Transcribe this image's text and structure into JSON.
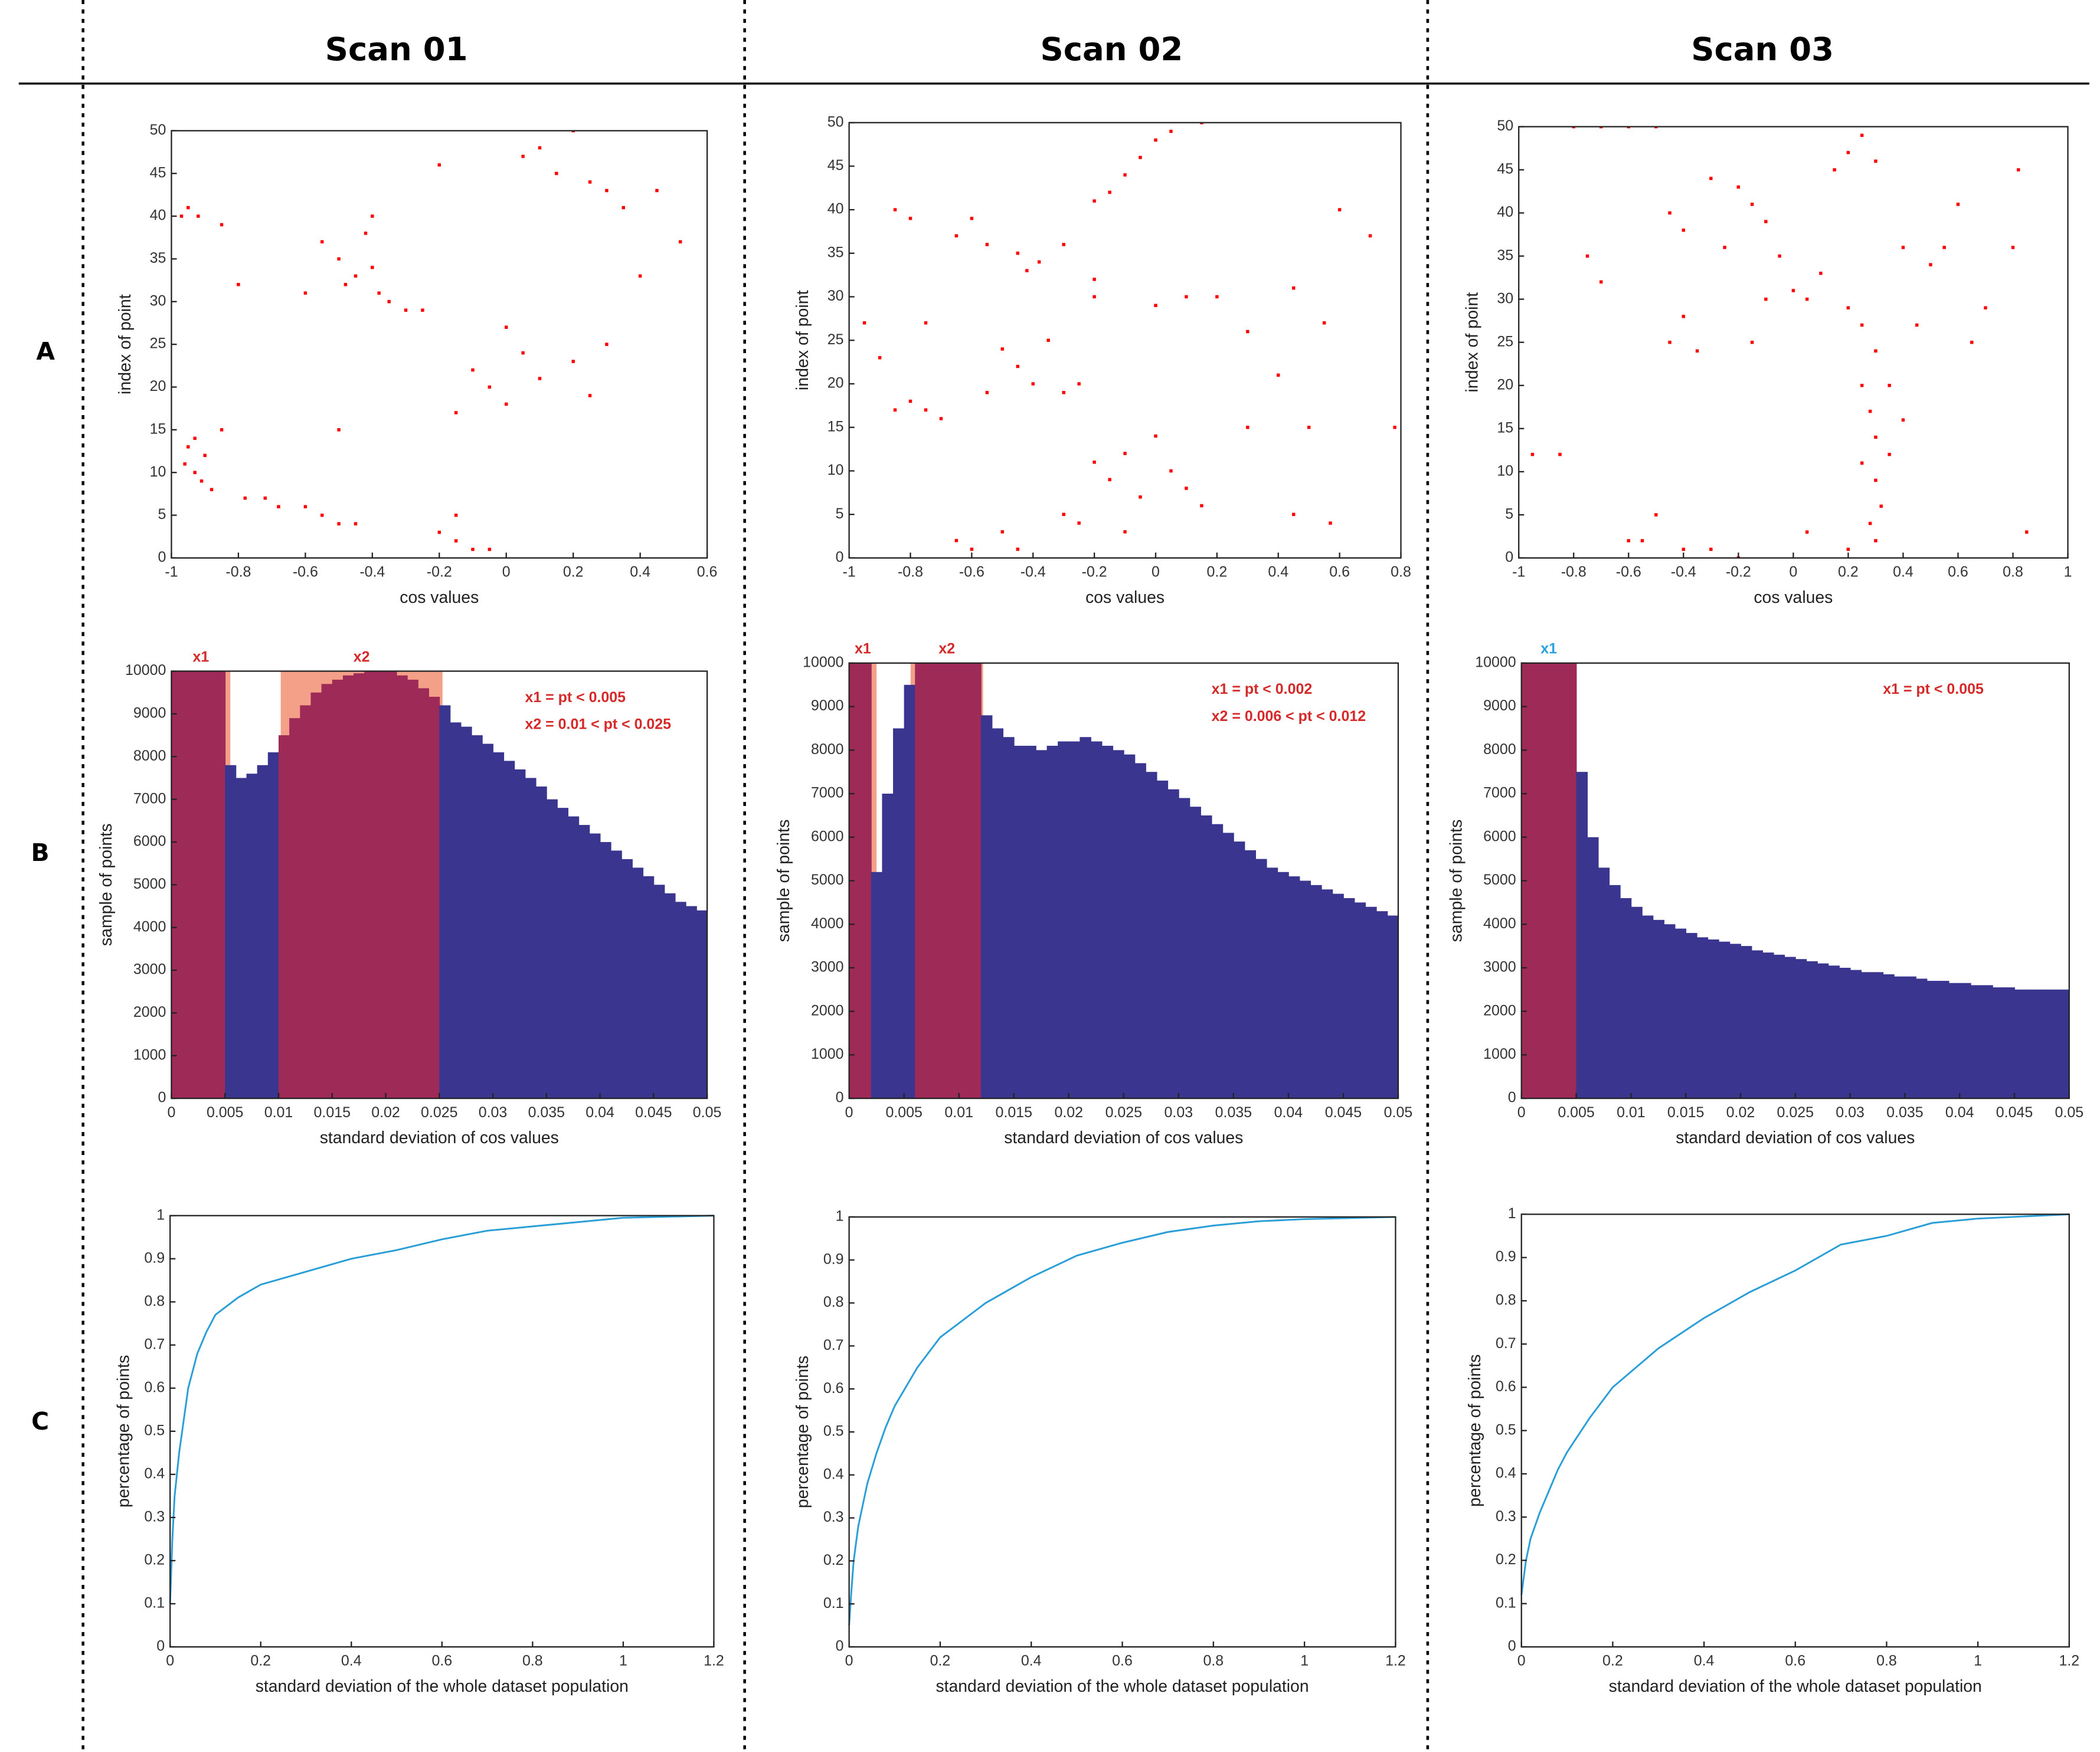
{
  "columns": [
    "Scan 01",
    "Scan 02",
    "Scan 03"
  ],
  "rows": [
    "A",
    "B",
    "C"
  ],
  "chart_data": [
    {
      "type": "scatter",
      "xlabel": "cos values",
      "ylabel": "index of point",
      "color": "#ff0000",
      "xlim": [
        -1,
        0.6
      ],
      "xticks": [
        -1,
        -0.8,
        -0.6,
        -0.4,
        -0.2,
        0,
        0.2,
        0.4,
        0.6
      ],
      "ylim": [
        0,
        50
      ],
      "yticks": [
        0,
        5,
        10,
        15,
        20,
        25,
        30,
        35,
        40,
        45,
        50
      ],
      "x": [
        -0.95,
        -0.92,
        -0.97,
        -0.85,
        -0.93,
        -0.95,
        -0.9,
        -0.96,
        -0.93,
        -0.91,
        -0.88,
        -0.85,
        -0.78,
        -0.72,
        -0.68,
        -0.6,
        -0.55,
        -0.5,
        -0.45,
        -0.55,
        -0.5,
        -0.45,
        -0.4,
        -0.38,
        -0.42,
        -0.35,
        -0.3,
        -0.48,
        -0.4,
        -0.6,
        -0.5,
        -0.2,
        -0.15,
        -0.1,
        -0.05,
        -0.15,
        -0.1,
        -0.05,
        0,
        0.05,
        0.1,
        0.2,
        0.25,
        0.3,
        -0.15,
        0,
        0.05,
        0.1,
        0.15,
        0.2,
        0.25,
        0.3,
        0.35,
        0.45,
        0.52,
        0.4,
        -0.2,
        -0.25,
        -0.8
      ],
      "values": [
        41,
        40,
        40,
        39,
        14,
        13,
        12,
        11,
        10,
        9,
        8,
        15,
        7,
        7,
        6,
        6,
        5,
        4,
        4,
        37,
        35,
        33,
        34,
        31,
        38,
        30,
        29,
        32,
        40,
        31,
        15,
        3,
        2,
        1,
        1,
        5,
        22,
        20,
        18,
        24,
        21,
        23,
        19,
        25,
        17,
        27,
        47,
        48,
        45,
        50,
        44,
        43,
        41,
        43,
        37,
        33,
        46,
        29,
        32
      ]
    },
    {
      "type": "scatter",
      "xlabel": "cos values",
      "ylabel": "index of point",
      "color": "#ff0000",
      "xlim": [
        -1,
        0.8
      ],
      "xticks": [
        -1,
        -0.8,
        -0.6,
        -0.4,
        -0.2,
        0,
        0.2,
        0.4,
        0.6,
        0.8
      ],
      "ylim": [
        0,
        50
      ],
      "yticks": [
        0,
        5,
        10,
        15,
        20,
        25,
        30,
        35,
        40,
        45,
        50
      ],
      "x": [
        -0.85,
        -0.8,
        -0.6,
        -0.65,
        -0.55,
        -0.45,
        -0.42,
        -0.38,
        -0.3,
        -0.2,
        -0.75,
        -0.9,
        -0.8,
        -0.75,
        -0.7,
        -0.85,
        -0.5,
        -0.45,
        -0.4,
        -0.55,
        -0.35,
        -0.3,
        -0.25,
        -0.65,
        -0.6,
        -0.5,
        -0.45,
        -0.3,
        -0.25,
        -0.2,
        -0.15,
        -0.1,
        -0.05,
        0,
        0.05,
        0.1,
        0.15,
        -0.1,
        -0.15,
        -0.1,
        -0.05,
        0,
        0.05,
        0.15,
        -0.2,
        -0.2,
        0,
        0.1,
        0.2,
        0.3,
        0.45,
        0.4,
        0.5,
        0.55,
        0.7,
        0.6,
        0.78,
        0.57,
        0.45,
        0.3,
        -0.95
      ],
      "values": [
        40,
        39,
        39,
        37,
        36,
        35,
        33,
        34,
        36,
        32,
        27,
        23,
        18,
        17,
        16,
        17,
        24,
        22,
        20,
        19,
        25,
        19,
        20,
        2,
        1,
        3,
        1,
        5,
        4,
        11,
        9,
        12,
        7,
        14,
        10,
        8,
        6,
        3,
        42,
        44,
        46,
        48,
        49,
        50,
        41,
        30,
        29,
        30,
        30,
        26,
        31,
        21,
        15,
        27,
        37,
        40,
        15,
        4,
        5,
        15,
        27
      ]
    },
    {
      "type": "scatter",
      "xlabel": "cos values",
      "ylabel": "index of point",
      "color": "#ff0000",
      "xlim": [
        -1,
        1
      ],
      "xticks": [
        -1,
        -0.8,
        -0.6,
        -0.4,
        -0.2,
        0,
        0.2,
        0.4,
        0.6,
        0.8,
        1
      ],
      "ylim": [
        0,
        50
      ],
      "yticks": [
        0,
        5,
        10,
        15,
        20,
        25,
        30,
        35,
        40,
        45,
        50
      ],
      "x": [
        -0.8,
        -0.7,
        -0.6,
        -0.5,
        -0.95,
        -0.85,
        -0.75,
        -0.7,
        -0.6,
        -0.55,
        -0.5,
        -0.4,
        -0.3,
        -0.2,
        -0.45,
        -0.4,
        -0.35,
        -0.45,
        -0.4,
        -0.3,
        -0.2,
        -0.15,
        -0.1,
        -0.25,
        -0.05,
        0,
        0.05,
        0.1,
        -0.1,
        0.15,
        0.2,
        0.25,
        0.3,
        0.2,
        0.25,
        0.3,
        0.25,
        0.28,
        0.3,
        0.25,
        0.3,
        0.32,
        0.28,
        0.3,
        0.35,
        0.4,
        0.35,
        0.45,
        0.5,
        0.55,
        0.6,
        0.65,
        0.7,
        0.8,
        0.82,
        0.85,
        0.05,
        0.2,
        -0.15,
        0.4
      ],
      "values": [
        50,
        50,
        50,
        50,
        12,
        12,
        35,
        32,
        2,
        2,
        5,
        1,
        1,
        0,
        25,
        28,
        24,
        40,
        38,
        44,
        43,
        41,
        39,
        36,
        35,
        31,
        30,
        33,
        30,
        45,
        47,
        49,
        46,
        29,
        27,
        24,
        20,
        17,
        14,
        11,
        9,
        6,
        4,
        2,
        12,
        16,
        20,
        27,
        34,
        36,
        41,
        25,
        29,
        36,
        45,
        3,
        3,
        1,
        25,
        36
      ]
    },
    {
      "type": "histogram",
      "xlabel": "standard deviation of cos values",
      "ylabel": "sample of points",
      "color": "#3a358f",
      "highlight_color": "#9e2a58",
      "region_color": "#f4a088",
      "label_color": "#d42a2a",
      "xlim": [
        0,
        0.05
      ],
      "xticks": [
        0,
        0.005,
        0.01,
        0.015,
        0.02,
        0.025,
        0.03,
        0.035,
        0.04,
        0.045,
        0.05
      ],
      "ylim": [
        0,
        10000
      ],
      "yticks": [
        0,
        1000,
        2000,
        3000,
        4000,
        5000,
        6000,
        7000,
        8000,
        9000,
        10000
      ],
      "bins": [
        0,
        0.001,
        0.002,
        0.003,
        0.004,
        0.005,
        0.006,
        0.007,
        0.008,
        0.009,
        0.01,
        0.011,
        0.012,
        0.013,
        0.014,
        0.015,
        0.016,
        0.017,
        0.018,
        0.019,
        0.02,
        0.021,
        0.022,
        0.023,
        0.024,
        0.025,
        0.026,
        0.027,
        0.028,
        0.029,
        0.03,
        0.031,
        0.032,
        0.033,
        0.034,
        0.035,
        0.036,
        0.037,
        0.038,
        0.039,
        0.04,
        0.041,
        0.042,
        0.043,
        0.044,
        0.045,
        0.046,
        0.047,
        0.048,
        0.049,
        0.05
      ],
      "counts": [
        10000,
        10000,
        10000,
        10000,
        10000,
        7800,
        7500,
        7600,
        7800,
        8100,
        8500,
        8900,
        9200,
        9500,
        9700,
        9800,
        9900,
        9950,
        10000,
        10000,
        10000,
        9900,
        9800,
        9600,
        9400,
        9200,
        8800,
        8700,
        8500,
        8300,
        8100,
        7900,
        7700,
        7500,
        7300,
        7000,
        6800,
        6600,
        6400,
        6200,
        6000,
        5800,
        5600,
        5400,
        5200,
        5000,
        4800,
        4600,
        4500,
        4400
      ],
      "highlights": [
        {
          "label": "x1",
          "range": [
            0,
            0.0055
          ]
        },
        {
          "label": "x2",
          "range": [
            0.0102,
            0.0253
          ]
        }
      ],
      "annotations": [
        "x1 = pt < 0.005",
        "x2 = 0.01 < pt < 0.025"
      ]
    },
    {
      "type": "histogram",
      "xlabel": "standard deviation of cos values",
      "ylabel": "sample of points",
      "color": "#3a358f",
      "highlight_color": "#9e2a58",
      "region_color": "#f4a088",
      "label_color": "#d42a2a",
      "xlim": [
        0,
        0.05
      ],
      "xticks": [
        0,
        0.005,
        0.01,
        0.015,
        0.02,
        0.025,
        0.03,
        0.035,
        0.04,
        0.045,
        0.05
      ],
      "ylim": [
        0,
        10000
      ],
      "yticks": [
        0,
        1000,
        2000,
        3000,
        4000,
        5000,
        6000,
        7000,
        8000,
        9000,
        10000
      ],
      "bins": [
        0,
        0.001,
        0.002,
        0.003,
        0.004,
        0.005,
        0.006,
        0.007,
        0.008,
        0.009,
        0.01,
        0.011,
        0.012,
        0.013,
        0.014,
        0.015,
        0.016,
        0.017,
        0.018,
        0.019,
        0.02,
        0.021,
        0.022,
        0.023,
        0.024,
        0.025,
        0.026,
        0.027,
        0.028,
        0.029,
        0.03,
        0.031,
        0.032,
        0.033,
        0.034,
        0.035,
        0.036,
        0.037,
        0.038,
        0.039,
        0.04,
        0.041,
        0.042,
        0.043,
        0.044,
        0.045,
        0.046,
        0.047,
        0.048,
        0.049,
        0.05
      ],
      "counts": [
        10000,
        10000,
        5200,
        7000,
        8500,
        9500,
        10000,
        10000,
        10000,
        10000,
        10000,
        10000,
        8800,
        8500,
        8300,
        8100,
        8100,
        8000,
        8100,
        8200,
        8200,
        8300,
        8200,
        8100,
        8000,
        7900,
        7700,
        7500,
        7300,
        7100,
        6900,
        6700,
        6500,
        6300,
        6100,
        5900,
        5700,
        5500,
        5300,
        5200,
        5100,
        5000,
        4900,
        4800,
        4700,
        4600,
        4500,
        4400,
        4300,
        4200
      ],
      "highlights": [
        {
          "label": "x1",
          "range": [
            0,
            0.0025
          ]
        },
        {
          "label": "x2",
          "range": [
            0.0056,
            0.0122
          ]
        }
      ],
      "annotations": [
        "x1 = pt < 0.002",
        "x2 = 0.006 < pt < 0.012"
      ]
    },
    {
      "type": "histogram",
      "xlabel": "standard deviation of cos values",
      "ylabel": "sample of points",
      "color": "#3a358f",
      "highlight_color": "#9e2a58",
      "region_color": "#f4a088",
      "label_color": "#2aa2e0",
      "xlim": [
        0,
        0.05
      ],
      "xticks": [
        0,
        0.005,
        0.01,
        0.015,
        0.02,
        0.025,
        0.03,
        0.035,
        0.04,
        0.045,
        0.05
      ],
      "ylim": [
        0,
        10000
      ],
      "yticks": [
        0,
        1000,
        2000,
        3000,
        4000,
        5000,
        6000,
        7000,
        8000,
        9000,
        10000
      ],
      "bins": [
        0,
        0.001,
        0.002,
        0.003,
        0.004,
        0.005,
        0.006,
        0.007,
        0.008,
        0.009,
        0.01,
        0.011,
        0.012,
        0.013,
        0.014,
        0.015,
        0.016,
        0.017,
        0.018,
        0.019,
        0.02,
        0.021,
        0.022,
        0.023,
        0.024,
        0.025,
        0.026,
        0.027,
        0.028,
        0.029,
        0.03,
        0.031,
        0.032,
        0.033,
        0.034,
        0.035,
        0.036,
        0.037,
        0.038,
        0.039,
        0.04,
        0.041,
        0.042,
        0.043,
        0.044,
        0.045,
        0.046,
        0.047,
        0.048,
        0.049,
        0.05
      ],
      "counts": [
        10000,
        10000,
        10000,
        10000,
        10000,
        7500,
        6000,
        5300,
        4900,
        4600,
        4400,
        4200,
        4100,
        4000,
        3900,
        3800,
        3700,
        3650,
        3600,
        3550,
        3500,
        3400,
        3350,
        3300,
        3250,
        3200,
        3150,
        3100,
        3050,
        3000,
        2950,
        2900,
        2900,
        2850,
        2800,
        2800,
        2750,
        2700,
        2700,
        2650,
        2650,
        2600,
        2600,
        2550,
        2550,
        2500,
        2500,
        2500,
        2500,
        2500
      ],
      "highlights": [
        {
          "label": "x1",
          "range": [
            0,
            0.005
          ]
        }
      ],
      "annotations": [
        "x1 = pt < 0.005"
      ]
    },
    {
      "type": "line",
      "xlabel": "standard deviation of the whole dataset population",
      "ylabel": "percentage of points",
      "color": "#2a9ed6",
      "xlim": [
        0,
        1.2
      ],
      "xticks": [
        0,
        0.2,
        0.4,
        0.6,
        0.8,
        1,
        1.2
      ],
      "ylim": [
        0,
        1
      ],
      "yticks": [
        0,
        0.1,
        0.2,
        0.3,
        0.4,
        0.5,
        0.6,
        0.7,
        0.8,
        0.9,
        1
      ],
      "x": [
        0,
        0.005,
        0.01,
        0.02,
        0.04,
        0.06,
        0.08,
        0.1,
        0.15,
        0.2,
        0.3,
        0.4,
        0.5,
        0.6,
        0.7,
        0.8,
        0.9,
        1.0,
        1.2
      ],
      "values": [
        0.1,
        0.25,
        0.35,
        0.45,
        0.6,
        0.68,
        0.73,
        0.77,
        0.81,
        0.84,
        0.87,
        0.9,
        0.92,
        0.945,
        0.965,
        0.975,
        0.985,
        0.995,
        1
      ]
    },
    {
      "type": "line",
      "xlabel": "standard deviation of the whole dataset population",
      "ylabel": "percentage of points",
      "color": "#2a9ed6",
      "xlim": [
        0,
        1.2
      ],
      "xticks": [
        0,
        0.2,
        0.4,
        0.6,
        0.8,
        1,
        1.2
      ],
      "ylim": [
        0,
        1
      ],
      "yticks": [
        0,
        0.1,
        0.2,
        0.3,
        0.4,
        0.5,
        0.6,
        0.7,
        0.8,
        0.9,
        1
      ],
      "x": [
        0,
        0.005,
        0.01,
        0.02,
        0.04,
        0.06,
        0.08,
        0.1,
        0.15,
        0.2,
        0.3,
        0.4,
        0.5,
        0.6,
        0.7,
        0.8,
        0.9,
        1.0,
        1.2
      ],
      "values": [
        0.05,
        0.13,
        0.2,
        0.28,
        0.38,
        0.45,
        0.51,
        0.56,
        0.65,
        0.72,
        0.8,
        0.86,
        0.91,
        0.94,
        0.965,
        0.98,
        0.99,
        0.995,
        1
      ]
    },
    {
      "type": "line",
      "xlabel": "standard deviation of the whole dataset population",
      "ylabel": "percentage of points",
      "color": "#2a9ed6",
      "xlim": [
        0,
        1.2
      ],
      "xticks": [
        0,
        0.2,
        0.4,
        0.6,
        0.8,
        1,
        1.2
      ],
      "ylim": [
        0,
        1
      ],
      "yticks": [
        0,
        0.1,
        0.2,
        0.3,
        0.4,
        0.5,
        0.6,
        0.7,
        0.8,
        0.9,
        1
      ],
      "x": [
        0,
        0.005,
        0.01,
        0.02,
        0.04,
        0.06,
        0.08,
        0.1,
        0.15,
        0.2,
        0.3,
        0.4,
        0.5,
        0.6,
        0.7,
        0.8,
        0.9,
        1.0,
        1.2
      ],
      "values": [
        0.12,
        0.16,
        0.2,
        0.25,
        0.31,
        0.36,
        0.41,
        0.45,
        0.53,
        0.6,
        0.69,
        0.76,
        0.82,
        0.87,
        0.93,
        0.95,
        0.98,
        0.99,
        1
      ]
    }
  ]
}
